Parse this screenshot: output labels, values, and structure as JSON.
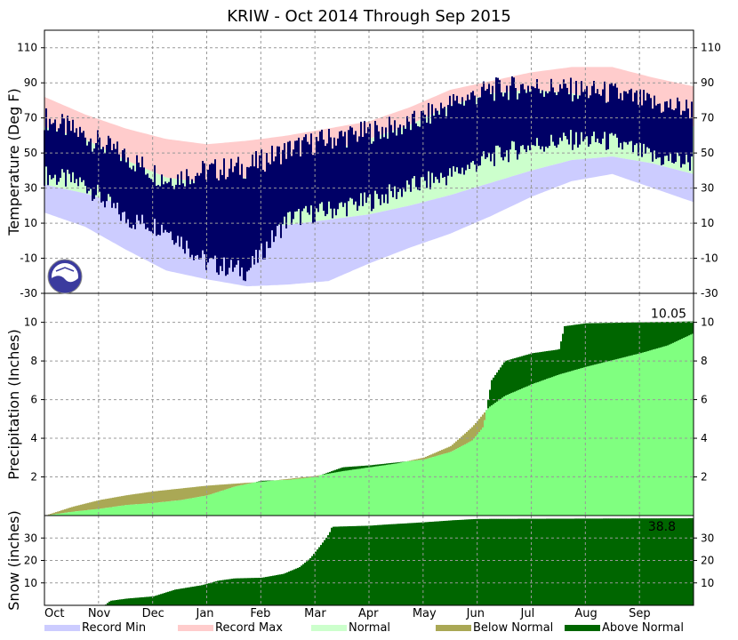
{
  "chart_data": {
    "title": "KRIW - Oct 2014 Through Sep 2015",
    "months": [
      "Oct",
      "Nov",
      "Dec",
      "Jan",
      "Feb",
      "Mar",
      "Apr",
      "May",
      "Jun",
      "Jul",
      "Aug",
      "Sep"
    ],
    "legend": [
      {
        "label": "Record Min",
        "color": "#ccccff"
      },
      {
        "label": "Record Max",
        "color": "#ffcccc"
      },
      {
        "label": "Normal",
        "color": "#ccffcc"
      },
      {
        "label": "Below Normal",
        "color": "#aaa855"
      },
      {
        "label": "Above Normal",
        "color": "#006600"
      }
    ],
    "temperature": {
      "type": "area",
      "ylabel": "Temperature (Deg F)",
      "ylim": [
        -30,
        120
      ],
      "ticks": [
        -30,
        -10,
        10,
        30,
        50,
        70,
        90,
        110
      ],
      "series_colors": {
        "record_max": "#ffcccc",
        "normal": "#ccffcc",
        "record_min": "#ccccff",
        "observed": "#000066"
      },
      "normal_high": [
        65,
        58,
        46,
        36,
        33,
        36,
        43,
        51,
        58,
        66,
        77,
        84,
        86,
        84,
        78,
        72,
        65
      ],
      "normal_low": [
        32,
        27,
        20,
        13,
        9,
        8,
        9,
        12,
        15,
        20,
        26,
        33,
        40,
        46,
        48,
        44,
        38
      ],
      "record_max": [
        82,
        72,
        64,
        58,
        55,
        57,
        60,
        64,
        68,
        76,
        86,
        91,
        96,
        99,
        99,
        93,
        88
      ],
      "record_min": [
        16,
        8,
        -5,
        -17,
        -22,
        -26,
        -25,
        -23,
        -13,
        -4,
        4,
        14,
        25,
        34,
        38,
        30,
        22
      ],
      "observed_high": [
        70,
        60,
        48,
        35,
        40,
        42,
        52,
        58,
        62,
        66,
        78,
        86,
        88,
        86,
        84,
        78,
        75
      ],
      "observed_low": [
        35,
        30,
        10,
        5,
        -15,
        -20,
        10,
        15,
        20,
        28,
        35,
        45,
        52,
        55,
        54,
        45,
        42
      ]
    },
    "precipitation": {
      "type": "area",
      "ylabel": "Precipitation (Inches)",
      "ylim": [
        0,
        11.5
      ],
      "ticks": [
        2,
        4,
        6,
        8,
        10
      ],
      "total_label": "10.05",
      "normal_cumulative": [
        [
          0,
          0
        ],
        [
          0.5,
          0.45
        ],
        [
          1,
          0.8
        ],
        [
          1.5,
          1.05
        ],
        [
          2,
          1.25
        ],
        [
          2.5,
          1.4
        ],
        [
          3,
          1.55
        ],
        [
          3.5,
          1.65
        ],
        [
          4,
          1.75
        ],
        [
          4.5,
          1.9
        ],
        [
          5,
          2.05
        ],
        [
          5.5,
          2.3
        ],
        [
          6,
          2.5
        ],
        [
          6.5,
          2.7
        ],
        [
          7,
          3.0
        ],
        [
          7.5,
          3.6
        ],
        [
          7.9,
          4.6
        ],
        [
          8.2,
          5.6
        ],
        [
          8.5,
          6.2
        ],
        [
          9,
          6.8
        ],
        [
          9.5,
          7.3
        ],
        [
          10,
          7.7
        ],
        [
          10.5,
          8.05
        ],
        [
          11,
          8.4
        ],
        [
          11.5,
          8.8
        ],
        [
          12,
          9.45
        ]
      ],
      "observed_cumulative": [
        [
          0,
          0
        ],
        [
          0.5,
          0.2
        ],
        [
          1,
          0.35
        ],
        [
          1.5,
          0.55
        ],
        [
          2,
          0.65
        ],
        [
          2.5,
          0.8
        ],
        [
          3,
          1.05
        ],
        [
          3.5,
          1.5
        ],
        [
          4,
          1.8
        ],
        [
          4.5,
          1.85
        ],
        [
          5,
          2.0
        ],
        [
          5.5,
          2.5
        ],
        [
          6,
          2.6
        ],
        [
          6.5,
          2.75
        ],
        [
          7,
          2.9
        ],
        [
          7.5,
          3.3
        ],
        [
          7.9,
          3.9
        ],
        [
          8.1,
          4.6
        ],
        [
          8.25,
          7.0
        ],
        [
          8.5,
          8.0
        ],
        [
          9,
          8.4
        ],
        [
          9.5,
          8.6
        ],
        [
          9.6,
          9.8
        ],
        [
          10,
          9.95
        ],
        [
          12,
          10.05
        ]
      ]
    },
    "snow": {
      "type": "area",
      "ylabel": "Snow (inches)",
      "ylim": [
        0,
        40
      ],
      "ticks": [
        10,
        20,
        30
      ],
      "total_label": "38.8",
      "observed_cumulative": [
        [
          1.1,
          0
        ],
        [
          1.2,
          2
        ],
        [
          1.5,
          3
        ],
        [
          2,
          4
        ],
        [
          2.4,
          7
        ],
        [
          2.9,
          9
        ],
        [
          3.2,
          11
        ],
        [
          3.5,
          12
        ],
        [
          4,
          12.3
        ],
        [
          4.4,
          14
        ],
        [
          4.7,
          17
        ],
        [
          4.9,
          21
        ],
        [
          5.1,
          27
        ],
        [
          5.25,
          32
        ],
        [
          5.3,
          35
        ],
        [
          6,
          35.5
        ],
        [
          6.3,
          36
        ],
        [
          7,
          37
        ],
        [
          7.6,
          38
        ],
        [
          8,
          38.5
        ],
        [
          12,
          38.8
        ]
      ]
    }
  }
}
